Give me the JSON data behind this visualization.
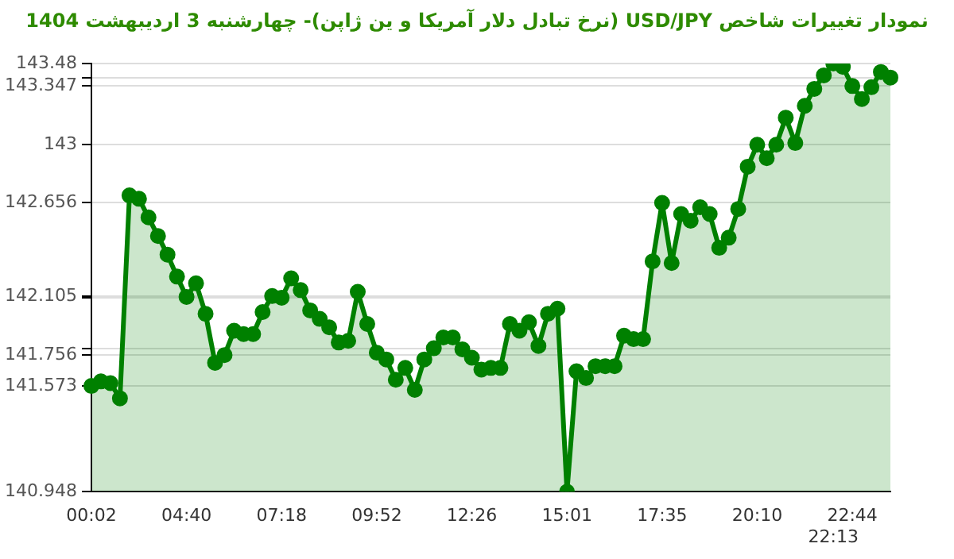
{
  "chart_data": {
    "type": "area",
    "title": "نمودار تغییرات شاخص USD/JPY (نرخ تبادل دلار آمریکا و ین ژاپن)- چهارشنبه  3 اردیبهشت 1404",
    "categories": [
      "00:02",
      null,
      null,
      null,
      null,
      null,
      null,
      null,
      null,
      null,
      "04:40",
      null,
      null,
      null,
      null,
      null,
      null,
      null,
      null,
      null,
      "07:18",
      null,
      null,
      null,
      null,
      null,
      null,
      null,
      null,
      null,
      "09:52",
      null,
      null,
      null,
      null,
      null,
      null,
      null,
      null,
      null,
      "12:26",
      null,
      null,
      null,
      null,
      null,
      null,
      null,
      null,
      null,
      "15:01",
      null,
      null,
      null,
      null,
      null,
      null,
      null,
      null,
      null,
      "17:35",
      null,
      null,
      null,
      null,
      null,
      null,
      null,
      null,
      null,
      "20:10",
      null,
      null,
      null,
      null,
      null,
      null,
      null,
      "22:13",
      null,
      "22:44",
      null,
      null,
      null,
      null
    ],
    "series": [
      {
        "color": "#008000",
        "values": [
          141.573,
          141.6,
          141.59,
          141.5,
          142.7,
          142.68,
          142.57,
          142.46,
          142.35,
          142.22,
          142.1,
          142.18,
          142.0,
          141.71,
          141.756,
          141.9,
          141.88,
          141.88,
          142.01,
          142.105,
          142.095,
          142.21,
          142.14,
          142.02,
          141.97,
          141.92,
          141.83,
          141.84,
          142.13,
          141.94,
          141.77,
          141.73,
          141.61,
          141.68,
          141.55,
          141.73,
          141.796,
          141.86,
          141.86,
          141.79,
          141.74,
          141.67,
          141.68,
          141.68,
          141.94,
          141.9,
          141.95,
          141.81,
          142.0,
          142.03,
          140.948,
          141.66,
          141.62,
          141.69,
          141.69,
          141.69,
          141.87,
          141.85,
          141.85,
          142.31,
          142.656,
          142.3,
          142.59,
          142.55,
          142.63,
          142.59,
          142.39,
          142.45,
          142.62,
          142.87,
          143.0,
          142.92,
          143.0,
          143.16,
          143.01,
          143.23,
          143.33,
          143.41,
          143.48,
          143.46,
          143.347,
          143.27,
          143.34,
          143.43,
          143.397
        ]
      }
    ],
    "ylim": [
      140.948,
      143.48
    ],
    "yticks": [
      143.48,
      {
        "value": 143.397,
        "label": null
      },
      143.347,
      143,
      142.656,
      142.105,
      {
        "value": 142.095,
        "label": null
      },
      {
        "value": 141.796,
        "label": null
      },
      141.756,
      141.573,
      140.948
    ],
    "grid": "y",
    "marker": "circle",
    "legend": false
  }
}
